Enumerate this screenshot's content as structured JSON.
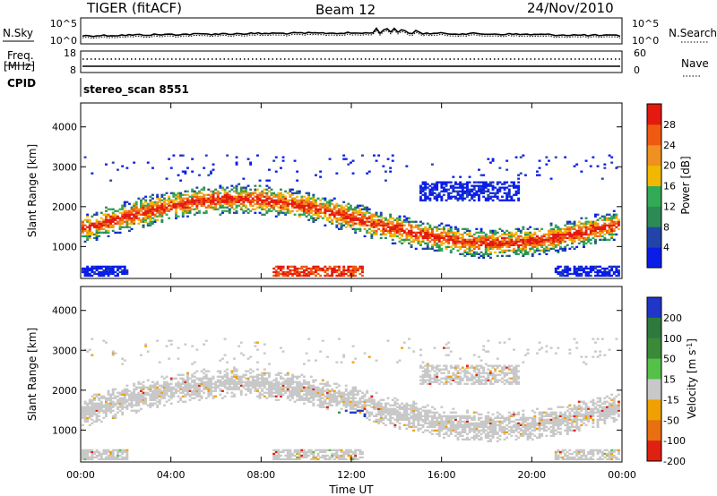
{
  "header": {
    "station": "TIGER (fitACF)",
    "beam": "Beam 12",
    "date": "24/Nov/2010"
  },
  "noise_panel": {
    "left_label": "N.Sky",
    "right_label": "N.Search",
    "left_ticks": [
      "10^5",
      "10^0"
    ],
    "right_ticks": [
      "10^5",
      "10^0"
    ]
  },
  "freq_panel": {
    "left_label_line1": "Freq.",
    "left_label_line2": "[MHz]",
    "right_label": "Nave",
    "left_ticks": [
      "18",
      "8"
    ],
    "right_ticks": [
      "60",
      "0"
    ]
  },
  "cpid": {
    "label": "CPID",
    "value": "stereo_scan 8551"
  },
  "chart_data": [
    {
      "type": "heatmap",
      "name": "power",
      "ylabel": "Slant Range [km]",
      "y_ticks": [
        "1000",
        "2000",
        "3000",
        "4000"
      ],
      "ylim": [
        200,
        4600
      ],
      "xlim_hours": [
        0,
        24
      ],
      "colorbar": {
        "title": "Power [dB]",
        "ticks": [
          "4",
          "8",
          "12",
          "16",
          "20",
          "24",
          "28"
        ],
        "colors": [
          "#0a1de8",
          "#2244aa",
          "#2c8a55",
          "#33aa55",
          "#f2b800",
          "#f09020",
          "#f05a10",
          "#e41a10"
        ]
      }
    },
    {
      "type": "heatmap",
      "name": "velocity",
      "ylabel": "Slant Range [km]",
      "y_ticks": [
        "1000",
        "2000",
        "3000",
        "4000"
      ],
      "ylim": [
        200,
        4600
      ],
      "xlim_hours": [
        0,
        24
      ],
      "colorbar": {
        "title": "Velocity [m s",
        "title_sup": "-1",
        "title_end": "]",
        "ticks": [
          "200",
          "100",
          "50",
          "15",
          "-15",
          "-50",
          "-100",
          "-200"
        ],
        "colors": [
          "#1f36c8",
          "#2e7a3e",
          "#3a8a3a",
          "#55c04a",
          "#c8c8c8",
          "#f0a000",
          "#e87010",
          "#e02010"
        ]
      }
    }
  ],
  "x_axis": {
    "ticks": [
      "00:00",
      "04:00",
      "08:00",
      "12:00",
      "16:00",
      "20:00",
      "00:00"
    ],
    "label": "Time UT"
  }
}
